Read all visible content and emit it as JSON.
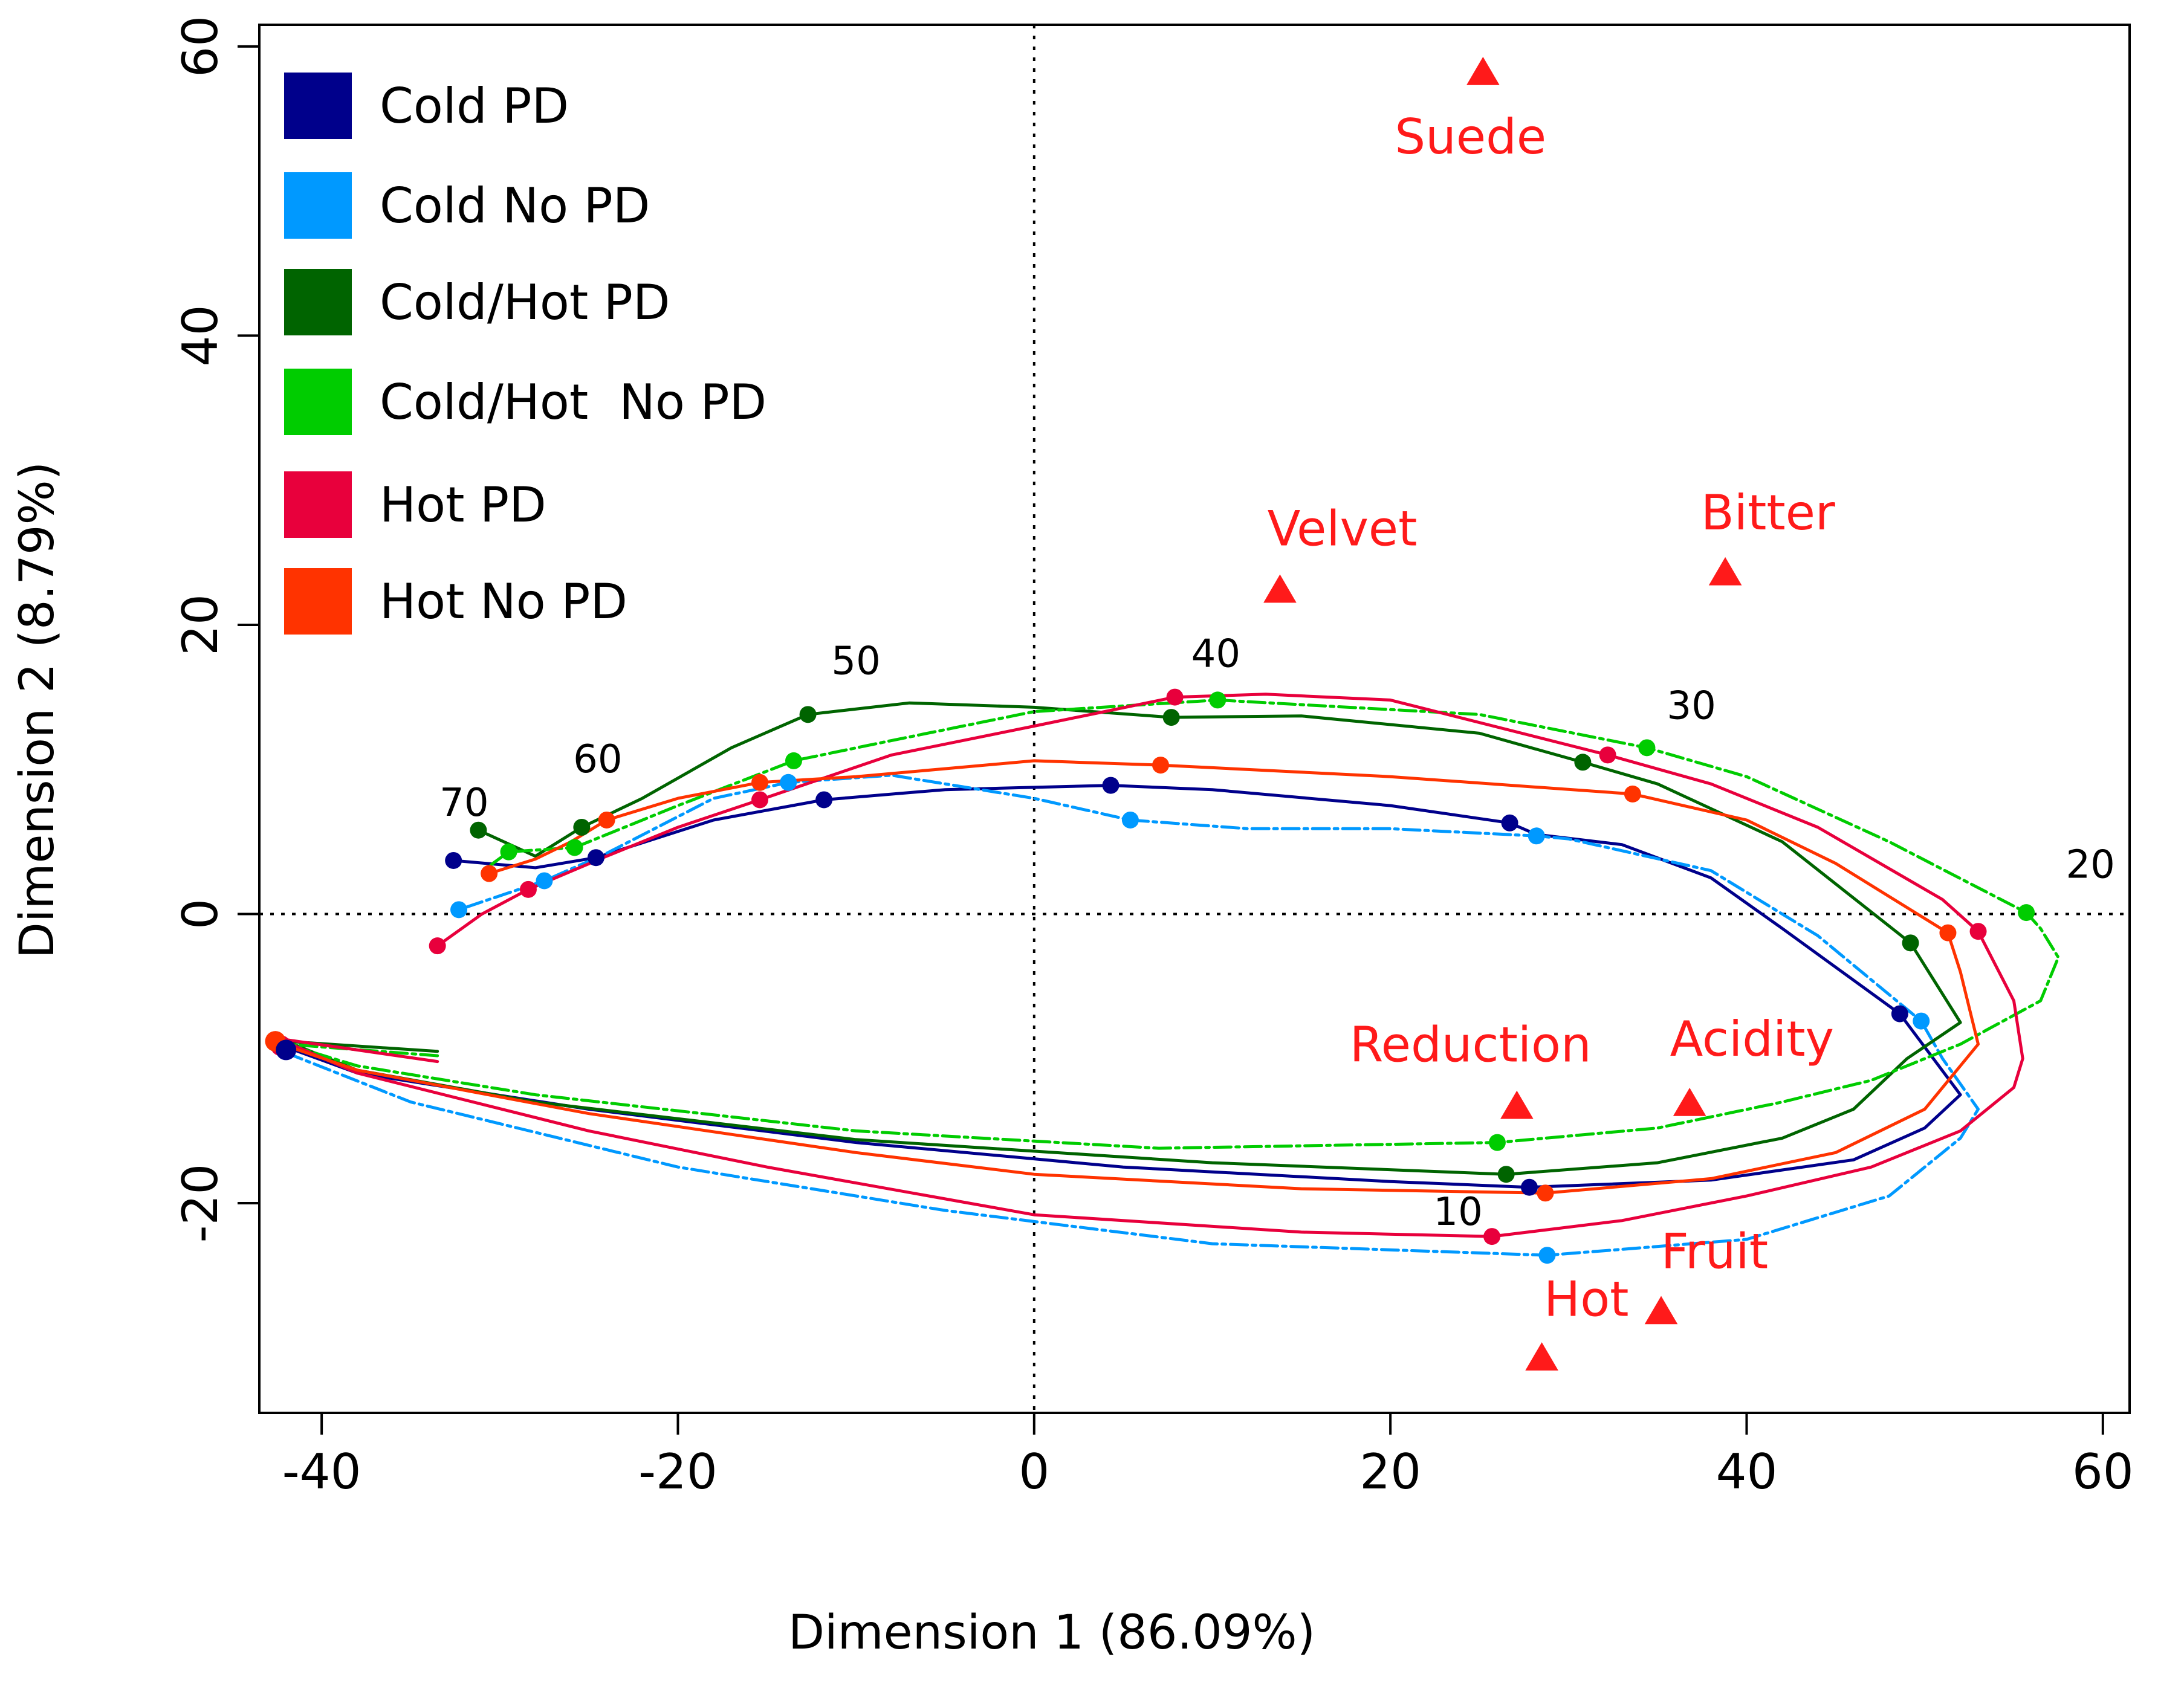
{
  "chart_data": {
    "type": "line",
    "title": "",
    "xlabel": "Dimension 1 (86.09%)",
    "ylabel": "Dimension 2 (8.79%)",
    "xlim": [
      -43.5,
      61.5
    ],
    "ylim": [
      -34.5,
      61.5
    ],
    "xticks": [
      -40,
      -20,
      0,
      20,
      40,
      60
    ],
    "yticks": [
      -20,
      0,
      20,
      40,
      60
    ],
    "reference_lines": {
      "x": 0,
      "y": 0,
      "style": "dotted"
    },
    "legend": {
      "position": "top-left"
    },
    "series": [
      {
        "name": "Cold PD",
        "color": "#00008B",
        "dash": "solid",
        "path": [
          [
            -42,
            -9.2
          ],
          [
            -38,
            -11
          ],
          [
            -25,
            -13.5
          ],
          [
            -10,
            -15.8
          ],
          [
            5,
            -17.5
          ],
          [
            20,
            -18.5
          ],
          [
            27.8,
            -18.9
          ],
          [
            38,
            -18.4
          ],
          [
            46,
            -17
          ],
          [
            50,
            -14.8
          ],
          [
            52,
            -12.5
          ],
          [
            48.6,
            -6.9
          ],
          [
            42,
            -1
          ],
          [
            38,
            2.5
          ],
          [
            33,
            4.8
          ],
          [
            28.2,
            5.5
          ],
          [
            26.7,
            6.3
          ],
          [
            20,
            7.5
          ],
          [
            10,
            8.6
          ],
          [
            4.3,
            8.9
          ],
          [
            -5,
            8.6
          ],
          [
            -11.8,
            7.9
          ],
          [
            -18,
            6.5
          ],
          [
            -24.6,
            3.9
          ],
          [
            -28,
            3.2
          ],
          [
            -32.6,
            3.7
          ]
        ],
        "markers": [
          [
            27.8,
            -18.9
          ],
          [
            48.6,
            -6.9
          ],
          [
            26.7,
            6.3
          ],
          [
            4.3,
            8.9
          ],
          [
            -11.8,
            7.9
          ],
          [
            -24.6,
            3.9
          ],
          [
            -32.6,
            3.7
          ]
        ]
      },
      {
        "name": "Cold No PD",
        "color": "#0099FF",
        "dash": "dashed",
        "path": [
          [
            -42,
            -9.6
          ],
          [
            -35,
            -13
          ],
          [
            -20,
            -17.5
          ],
          [
            -5,
            -20.5
          ],
          [
            10,
            -22.8
          ],
          [
            28.8,
            -23.6
          ],
          [
            40,
            -22.5
          ],
          [
            48,
            -19.5
          ],
          [
            52,
            -15.5
          ],
          [
            53,
            -13.5
          ],
          [
            51,
            -10
          ],
          [
            49.8,
            -7.4
          ],
          [
            44,
            -1.5
          ],
          [
            38,
            3
          ],
          [
            30,
            5.2
          ],
          [
            28.2,
            5.4
          ],
          [
            20,
            5.9
          ],
          [
            12,
            5.9
          ],
          [
            5.4,
            6.5
          ],
          [
            0,
            8
          ],
          [
            -8,
            9.6
          ],
          [
            -13.8,
            9.1
          ],
          [
            -18,
            8
          ],
          [
            -24,
            4.2
          ],
          [
            -27.5,
            2.3
          ],
          [
            -32.3,
            0.3
          ]
        ],
        "markers": [
          [
            28.8,
            -23.6
          ],
          [
            49.8,
            -7.4
          ],
          [
            28.2,
            5.4
          ],
          [
            5.4,
            6.5
          ],
          [
            -13.8,
            9.1
          ],
          [
            -27.5,
            2.3
          ],
          [
            -32.3,
            0.3
          ]
        ]
      },
      {
        "name": "Cold/Hot PD",
        "color": "#006400",
        "dash": "solid",
        "path": [
          [
            -33.5,
            -9.5
          ],
          [
            -42,
            -8.8
          ],
          [
            -38,
            -10.8
          ],
          [
            -28,
            -13
          ],
          [
            -10,
            -15.6
          ],
          [
            10,
            -17.2
          ],
          [
            26.5,
            -18
          ],
          [
            35,
            -17.2
          ],
          [
            42,
            -15.5
          ],
          [
            46,
            -13.5
          ],
          [
            49,
            -10
          ],
          [
            52,
            -7.5
          ],
          [
            49.2,
            -2
          ],
          [
            42,
            5
          ],
          [
            35,
            9
          ],
          [
            30.8,
            10.5
          ],
          [
            25,
            12.5
          ],
          [
            15,
            13.7
          ],
          [
            7.7,
            13.6
          ],
          [
            0,
            14.3
          ],
          [
            -7,
            14.6
          ],
          [
            -12.7,
            13.8
          ],
          [
            -17,
            11.5
          ],
          [
            -22,
            8
          ],
          [
            -25.4,
            6
          ],
          [
            -28,
            4
          ],
          [
            -31.2,
            5.8
          ]
        ],
        "markers": [
          [
            26.5,
            -18
          ],
          [
            49.2,
            -2
          ],
          [
            30.8,
            10.5
          ],
          [
            7.7,
            13.6
          ],
          [
            -12.7,
            13.8
          ],
          [
            -25.4,
            6
          ],
          [
            -31.2,
            5.8
          ]
        ]
      },
      {
        "name": "Cold/Hot  No PD",
        "color": "#00CC00",
        "dash": "dashed",
        "path": [
          [
            -33.5,
            -9.8
          ],
          [
            -42,
            -9
          ],
          [
            -38,
            -10.5
          ],
          [
            -28,
            -12.5
          ],
          [
            -10,
            -15
          ],
          [
            7,
            -16.2
          ],
          [
            26,
            -15.8
          ],
          [
            35,
            -14.8
          ],
          [
            42,
            -13
          ],
          [
            47,
            -11.5
          ],
          [
            52,
            -9
          ],
          [
            56.5,
            -6
          ],
          [
            57.5,
            -3
          ],
          [
            56.5,
            -1
          ],
          [
            55.7,
            0.1
          ],
          [
            48,
            5
          ],
          [
            40,
            9.5
          ],
          [
            34.4,
            11.5
          ],
          [
            25,
            13.8
          ],
          [
            10.3,
            14.8
          ],
          [
            0,
            14
          ],
          [
            -8,
            12
          ],
          [
            -13.5,
            10.6
          ],
          [
            -20,
            7.5
          ],
          [
            -25.8,
            4.6
          ],
          [
            -29.5,
            4.3
          ],
          [
            -30.5,
            3.4
          ]
        ],
        "markers": [
          [
            26,
            -15.8
          ],
          [
            55.7,
            0.1
          ],
          [
            34.4,
            11.5
          ],
          [
            10.3,
            14.8
          ],
          [
            -13.5,
            10.6
          ],
          [
            -25.8,
            4.6
          ],
          [
            -29.5,
            4.3
          ]
        ]
      },
      {
        "name": "Hot PD",
        "color": "#E8003C",
        "dash": "solid",
        "path": [
          [
            -33.5,
            -10.2
          ],
          [
            -42.5,
            -8.6
          ],
          [
            -38,
            -11
          ],
          [
            -25,
            -15
          ],
          [
            -15,
            -17.5
          ],
          [
            0,
            -20.8
          ],
          [
            15,
            -22
          ],
          [
            25.7,
            -22.3
          ],
          [
            33,
            -21.2
          ],
          [
            40,
            -19.5
          ],
          [
            47,
            -17.5
          ],
          [
            52,
            -15
          ],
          [
            55,
            -12
          ],
          [
            55.5,
            -10
          ],
          [
            55,
            -6
          ],
          [
            53,
            -1.2
          ],
          [
            51,
            1
          ],
          [
            44,
            6
          ],
          [
            38,
            9
          ],
          [
            32.2,
            11
          ],
          [
            20,
            14.8
          ],
          [
            13,
            15.2
          ],
          [
            7.9,
            15
          ],
          [
            0,
            13
          ],
          [
            -8,
            11
          ],
          [
            -15.4,
            7.9
          ],
          [
            -20,
            6
          ],
          [
            -24,
            4
          ],
          [
            -28.4,
            1.7
          ],
          [
            -31,
            0
          ],
          [
            -33.5,
            -2.2
          ]
        ],
        "markers": [
          [
            25.7,
            -22.3
          ],
          [
            53,
            -1.2
          ],
          [
            32.2,
            11
          ],
          [
            7.9,
            15
          ],
          [
            -15.4,
            7.9
          ],
          [
            -28.4,
            1.7
          ],
          [
            -33.5,
            -2.2
          ]
        ]
      },
      {
        "name": "Hot No PD",
        "color": "#FF3300",
        "dash": "solid",
        "path": [
          [
            -42.5,
            -8.9
          ],
          [
            -38,
            -10.8
          ],
          [
            -25,
            -13.8
          ],
          [
            -10,
            -16.5
          ],
          [
            0,
            -18
          ],
          [
            15,
            -19
          ],
          [
            28.7,
            -19.3
          ],
          [
            38,
            -18.3
          ],
          [
            45,
            -16.5
          ],
          [
            50,
            -13.5
          ],
          [
            53,
            -9
          ],
          [
            52,
            -4
          ],
          [
            51.3,
            -1.3
          ],
          [
            45,
            3.5
          ],
          [
            40,
            6.5
          ],
          [
            33.6,
            8.3
          ],
          [
            20,
            9.5
          ],
          [
            7.1,
            10.3
          ],
          [
            0,
            10.6
          ],
          [
            -10,
            9.5
          ],
          [
            -15.4,
            9.1
          ],
          [
            -20,
            8
          ],
          [
            -24,
            6.5
          ],
          [
            -26,
            5
          ],
          [
            -28,
            3.8
          ],
          [
            -30.6,
            2.8
          ]
        ],
        "markers": [
          [
            28.7,
            -19.3
          ],
          [
            51.3,
            -1.3
          ],
          [
            33.6,
            8.3
          ],
          [
            7.1,
            10.3
          ],
          [
            -15.4,
            9.1
          ],
          [
            -24,
            6.5
          ],
          [
            -30.6,
            2.8
          ]
        ]
      }
    ],
    "start_points": [
      [
        -42.3,
        -9.1
      ],
      [
        -42.6,
        -8.8
      ],
      [
        -42,
        -9.4
      ]
    ],
    "time_labels": [
      {
        "text": "10",
        "x": 23.8,
        "y": -21.5
      },
      {
        "text": "20",
        "x": 59.3,
        "y": 2.5
      },
      {
        "text": "30",
        "x": 36.9,
        "y": 13.5
      },
      {
        "text": "40",
        "x": 10.2,
        "y": 17.1
      },
      {
        "text": "50",
        "x": -10,
        "y": 16.6
      },
      {
        "text": "60",
        "x": -24.5,
        "y": 9.8
      },
      {
        "text": "70",
        "x": -32,
        "y": 6.8
      }
    ],
    "attributes": [
      {
        "name": "Suede",
        "x": 25.2,
        "y": 58.2,
        "label_x": 24.5,
        "label_y": 52.6
      },
      {
        "name": "Velvet",
        "x": 13.8,
        "y": 22.4,
        "label_x": 17.3,
        "label_y": 25.5
      },
      {
        "name": "Bitter",
        "x": 38.8,
        "y": 23.6,
        "label_x": 41.2,
        "label_y": 26.6
      },
      {
        "name": "Reduction",
        "x": 27.1,
        "y": -13.3,
        "label_x": 24.5,
        "label_y": -10.2
      },
      {
        "name": "Acidity",
        "x": 36.8,
        "y": -13.1,
        "label_x": 40.3,
        "label_y": -9.8
      },
      {
        "name": "Fruit",
        "x": 35.2,
        "y": -27.5,
        "label_x": 38.2,
        "label_y": -24.5
      },
      {
        "name": "Hot",
        "x": 28.5,
        "y": -30.7,
        "label_x": 31,
        "label_y": -27.8
      }
    ],
    "attribute_color": "#FF1A1A"
  }
}
